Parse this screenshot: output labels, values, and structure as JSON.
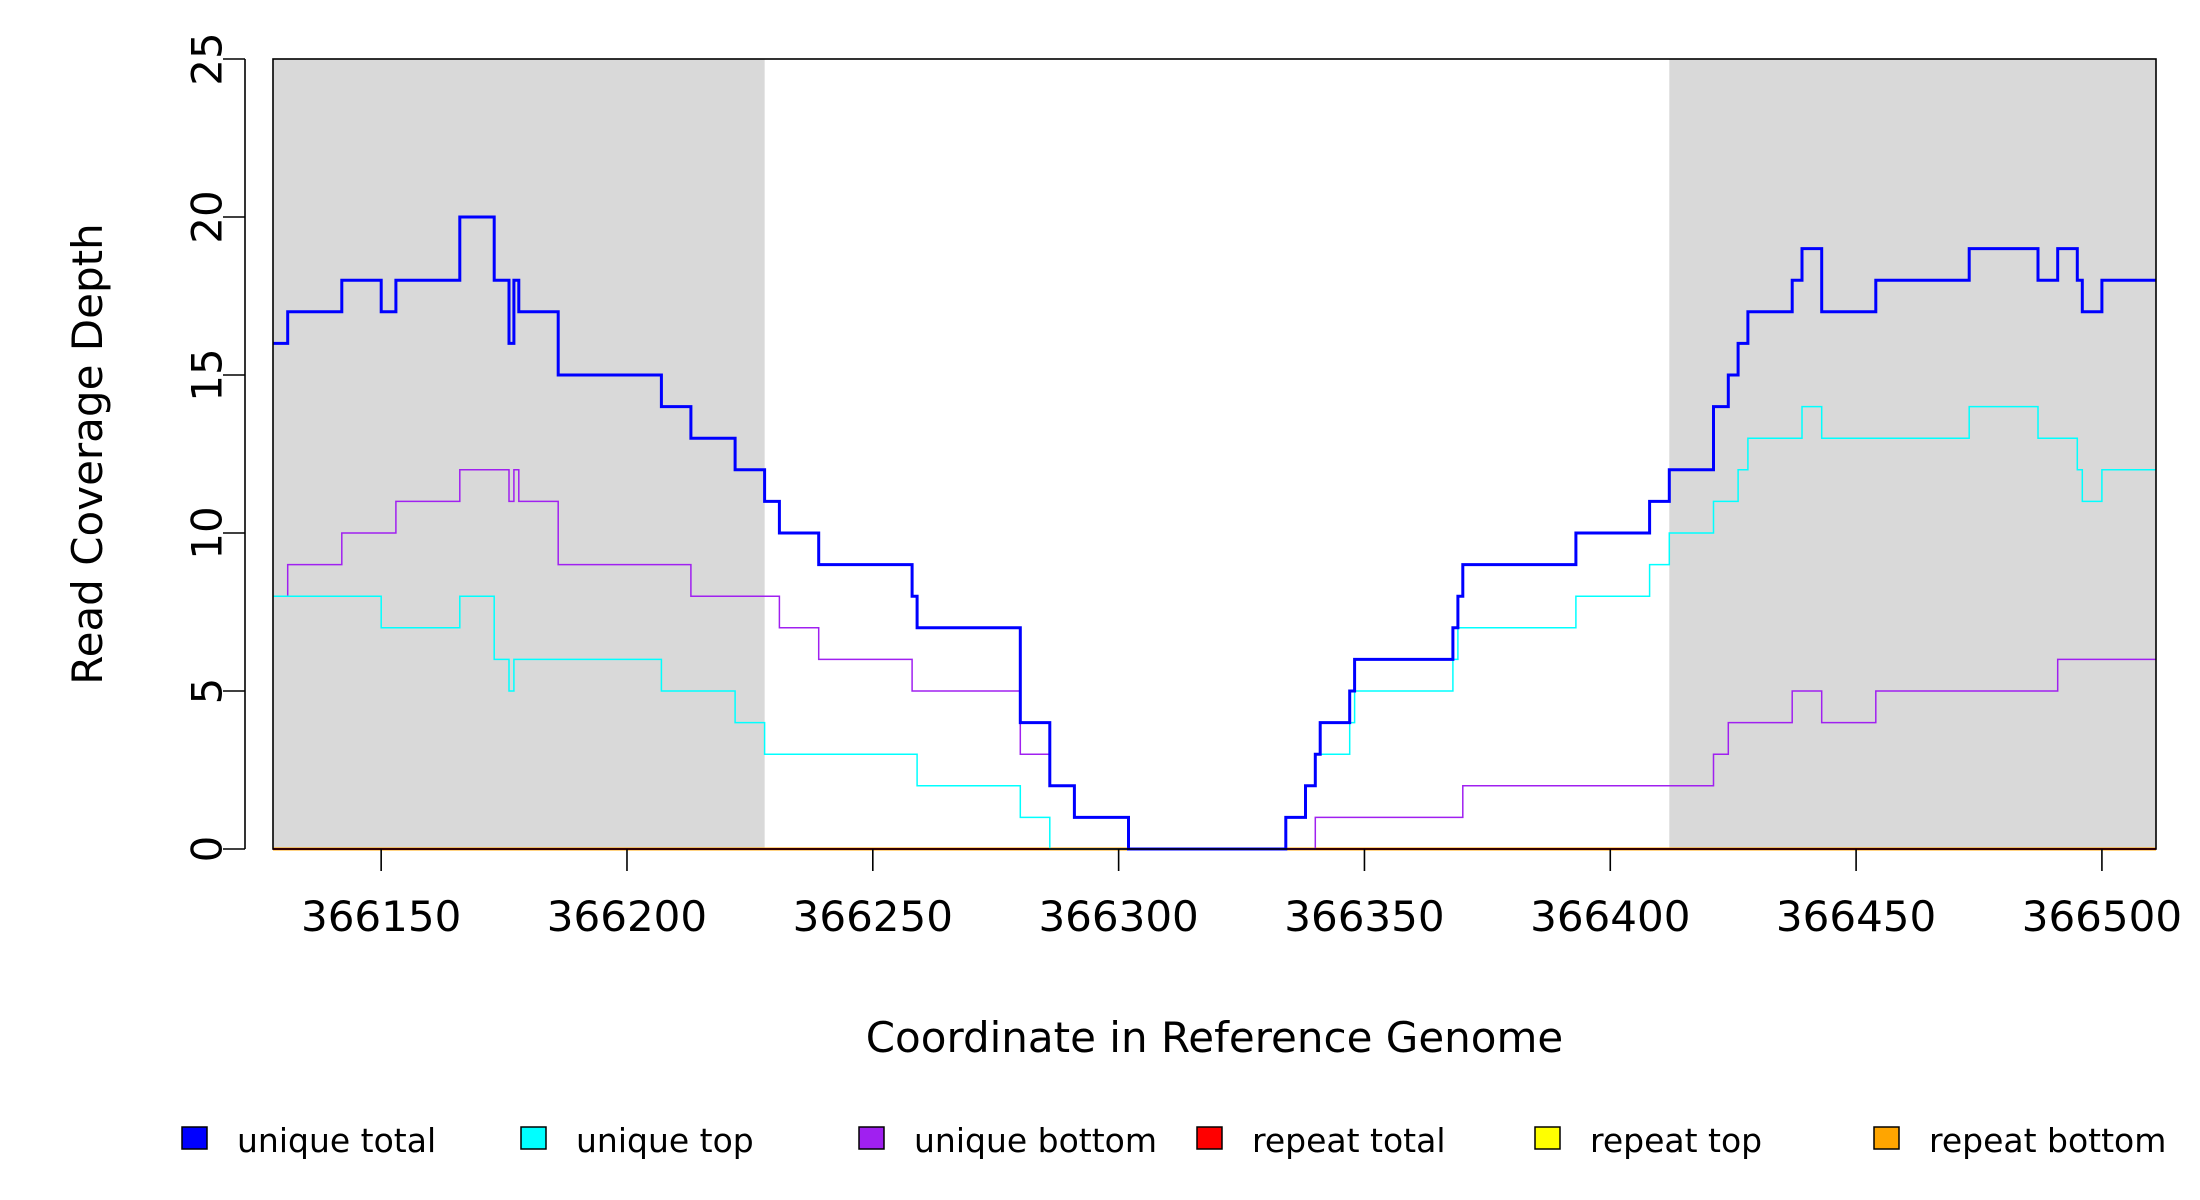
{
  "chart_data": {
    "type": "line",
    "xlabel": "Coordinate in Reference Genome",
    "ylabel": "Read Coverage Depth",
    "xlim": [
      366128,
      366511
    ],
    "ylim": [
      0,
      25
    ],
    "x_ticks": [
      366150,
      366200,
      366250,
      366300,
      366350,
      366400,
      366450,
      366500
    ],
    "y_ticks": [
      0,
      5,
      10,
      15,
      20,
      25
    ],
    "grid": false,
    "shaded_regions": [
      {
        "x0": 366128,
        "x1": 366228,
        "color": "#d9d9d9"
      },
      {
        "x0": 366412,
        "x1": 366511,
        "color": "#d9d9d9"
      }
    ],
    "legend_position": "bottom",
    "series": [
      {
        "name": "unique total",
        "color": "#0000ff",
        "line_width": 3,
        "points": [
          [
            366128,
            16
          ],
          [
            366131,
            17
          ],
          [
            366142,
            18
          ],
          [
            366150,
            17
          ],
          [
            366153,
            18
          ],
          [
            366166,
            20
          ],
          [
            366173,
            18
          ],
          [
            366176,
            16
          ],
          [
            366177,
            18
          ],
          [
            366178,
            17
          ],
          [
            366186,
            15
          ],
          [
            366207,
            14
          ],
          [
            366213,
            13
          ],
          [
            366222,
            12
          ],
          [
            366228,
            11
          ],
          [
            366231,
            10
          ],
          [
            366239,
            9
          ],
          [
            366258,
            8
          ],
          [
            366259,
            7
          ],
          [
            366280,
            4
          ],
          [
            366286,
            2
          ],
          [
            366291,
            1
          ],
          [
            366302,
            0
          ],
          [
            366334,
            1
          ],
          [
            366338,
            2
          ],
          [
            366340,
            3
          ],
          [
            366341,
            4
          ],
          [
            366347,
            5
          ],
          [
            366348,
            6
          ],
          [
            366368,
            7
          ],
          [
            366369,
            8
          ],
          [
            366370,
            9
          ],
          [
            366393,
            10
          ],
          [
            366408,
            11
          ],
          [
            366412,
            12
          ],
          [
            366421,
            14
          ],
          [
            366424,
            15
          ],
          [
            366426,
            16
          ],
          [
            366428,
            17
          ],
          [
            366437,
            18
          ],
          [
            366439,
            19
          ],
          [
            366443,
            17
          ],
          [
            366454,
            18
          ],
          [
            366473,
            19
          ],
          [
            366487,
            18
          ],
          [
            366491,
            19
          ],
          [
            366495,
            18
          ],
          [
            366496,
            17
          ],
          [
            366500,
            18
          ],
          [
            366511,
            18
          ]
        ]
      },
      {
        "name": "unique top",
        "color": "#00ffff",
        "line_width": 1.5,
        "points": [
          [
            366128,
            8
          ],
          [
            366150,
            7
          ],
          [
            366166,
            8
          ],
          [
            366173,
            6
          ],
          [
            366176,
            5
          ],
          [
            366177,
            6
          ],
          [
            366207,
            5
          ],
          [
            366222,
            4
          ],
          [
            366228,
            3
          ],
          [
            366259,
            2
          ],
          [
            366280,
            1
          ],
          [
            366286,
            0
          ],
          [
            366334,
            1
          ],
          [
            366338,
            2
          ],
          [
            366340,
            3
          ],
          [
            366347,
            4
          ],
          [
            366348,
            5
          ],
          [
            366368,
            6
          ],
          [
            366369,
            7
          ],
          [
            366393,
            8
          ],
          [
            366408,
            9
          ],
          [
            366412,
            10
          ],
          [
            366421,
            11
          ],
          [
            366426,
            12
          ],
          [
            366428,
            13
          ],
          [
            366439,
            14
          ],
          [
            366443,
            13
          ],
          [
            366473,
            14
          ],
          [
            366487,
            13
          ],
          [
            366495,
            12
          ],
          [
            366496,
            11
          ],
          [
            366500,
            12
          ],
          [
            366511,
            12
          ]
        ]
      },
      {
        "name": "unique bottom",
        "color": "#a020f0",
        "line_width": 1.5,
        "points": [
          [
            366128,
            8
          ],
          [
            366131,
            9
          ],
          [
            366142,
            10
          ],
          [
            366153,
            11
          ],
          [
            366166,
            12
          ],
          [
            366176,
            11
          ],
          [
            366177,
            12
          ],
          [
            366178,
            11
          ],
          [
            366186,
            9
          ],
          [
            366213,
            8
          ],
          [
            366231,
            7
          ],
          [
            366239,
            6
          ],
          [
            366258,
            5
          ],
          [
            366280,
            3
          ],
          [
            366286,
            2
          ],
          [
            366291,
            1
          ],
          [
            366302,
            0
          ],
          [
            366340,
            1
          ],
          [
            366370,
            2
          ],
          [
            366421,
            3
          ],
          [
            366424,
            4
          ],
          [
            366437,
            5
          ],
          [
            366443,
            4
          ],
          [
            366454,
            5
          ],
          [
            366491,
            6
          ],
          [
            366511,
            6
          ]
        ]
      },
      {
        "name": "repeat total",
        "color": "#ff0000",
        "line_width": 2,
        "points": [
          [
            366128,
            0
          ],
          [
            366511,
            0
          ]
        ]
      },
      {
        "name": "repeat top",
        "color": "#ffff00",
        "line_width": 2,
        "points": [
          [
            366128,
            0
          ],
          [
            366511,
            0
          ]
        ]
      },
      {
        "name": "repeat bottom",
        "color": "#ffa500",
        "line_width": 3,
        "points": [
          [
            366128,
            0
          ],
          [
            366511,
            0
          ]
        ]
      }
    ]
  }
}
